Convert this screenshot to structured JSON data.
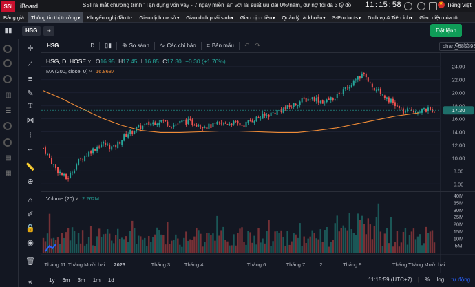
{
  "app": {
    "logo": "SSI",
    "name": "iBoard",
    "clock": "11:15:58",
    "language": "Tiếng Việt",
    "ticker": "SSI ra mắt chương trình \"Tận dụng vốn vay - 7 ngày miễn lãi\" với lãi suất ưu đãi 0%/năm, dư nợ tối đa 3 tỷ đồng/TK, dành cho"
  },
  "menu": [
    {
      "label": "Bảng giá",
      "caret": false,
      "active": false
    },
    {
      "label": "Thông tin thị trường",
      "caret": true,
      "active": true
    },
    {
      "label": "Khuyến nghị đầu tư",
      "caret": false,
      "active": false
    },
    {
      "label": "Giao dịch cơ sở",
      "caret": true,
      "active": false
    },
    {
      "label": "Giao dịch phái sinh",
      "caret": true,
      "active": false
    },
    {
      "label": "Giao dịch tiền",
      "caret": true,
      "active": false
    },
    {
      "label": "Quản lý tài khoản",
      "caret": true,
      "active": false
    },
    {
      "label": "S-Products",
      "caret": true,
      "active": false
    },
    {
      "label": "Dịch vụ & Tiện ích",
      "caret": true,
      "active": false
    },
    {
      "label": "Giao diện của tôi",
      "caret": false,
      "active": false
    }
  ],
  "tabs": {
    "active": "HSG",
    "add": "+"
  },
  "order_button": "Đặt lệnh",
  "toolbar": {
    "symbol": "HSG",
    "interval": "D",
    "compare": "So sánh",
    "indicators": "Các chỉ báo",
    "template": "Bản mẫu",
    "chart_name": "chart_68539677"
  },
  "legend": {
    "title": "HSG, D, HOSE",
    "o_label": "O",
    "open": "16.95",
    "h_label": "H",
    "high": "17.45",
    "l_label": "L",
    "low": "16.85",
    "c_label": "C",
    "close": "17.30",
    "change": "+0.30 (+1.76%)",
    "ma_label": "MA (200, close, 0)",
    "ma_value": "16.8687",
    "vol_label": "Volume (20)",
    "vol_value": "2.262M"
  },
  "bottom": {
    "ranges": [
      "1y",
      "6m",
      "3m",
      "1m",
      "1d"
    ],
    "time": "11:15:59 (UTC+7)",
    "pct": "%",
    "log": "log",
    "auto": "tự động"
  },
  "colors": {
    "up": "#26a69a",
    "down": "#ef5350",
    "ma": "#f08c37",
    "bg": "#131722",
    "accent": "#0f9d58",
    "price_tag": "#1e6f6a"
  },
  "chart_data": {
    "type": "candlestick",
    "price_axis": {
      "ticks": [
        "24.00",
        "22.00",
        "20.00",
        "18.00",
        "16.00",
        "14.00",
        "12.00",
        "10.00",
        "8.00",
        "6.00"
      ],
      "ylim": [
        5.5,
        24.5
      ],
      "last_price": "17.30"
    },
    "volume_axis": {
      "ticks": [
        "40M",
        "35M",
        "30M",
        "25M",
        "20M",
        "15M",
        "10M",
        "5M"
      ],
      "ylim": [
        0,
        40
      ]
    },
    "x_ticks": [
      "Tháng 11",
      "Tháng Mười hai",
      "2023",
      "Tháng 3",
      "Tháng 4",
      "Tháng 6",
      "Tháng 7",
      "2",
      "Tháng 9",
      "Tháng 11",
      "Tháng Mười hai"
    ],
    "bold_x_ticks": [
      "2023"
    ],
    "x_tick_pos": [
      0.03,
      0.11,
      0.195,
      0.3,
      0.385,
      0.545,
      0.645,
      0.71,
      0.79,
      0.92,
      0.98
    ],
    "close_path": [
      [
        0.0,
        11.5
      ],
      [
        0.03,
        8.5
      ],
      [
        0.06,
        6.7
      ],
      [
        0.09,
        9.5
      ],
      [
        0.12,
        11.0
      ],
      [
        0.15,
        12.2
      ],
      [
        0.18,
        11.5
      ],
      [
        0.21,
        13.5
      ],
      [
        0.24,
        14.5
      ],
      [
        0.27,
        15.2
      ],
      [
        0.3,
        15.8
      ],
      [
        0.33,
        15.0
      ],
      [
        0.36,
        15.6
      ],
      [
        0.39,
        15.3
      ],
      [
        0.42,
        14.8
      ],
      [
        0.45,
        15.2
      ],
      [
        0.48,
        15.4
      ],
      [
        0.51,
        15.0
      ],
      [
        0.54,
        16.0
      ],
      [
        0.57,
        16.5
      ],
      [
        0.6,
        17.2
      ],
      [
        0.63,
        17.8
      ],
      [
        0.66,
        18.8
      ],
      [
        0.69,
        19.2
      ],
      [
        0.72,
        18.5
      ],
      [
        0.75,
        19.6
      ],
      [
        0.78,
        20.8
      ],
      [
        0.8,
        21.8
      ],
      [
        0.82,
        23.0
      ],
      [
        0.84,
        21.0
      ],
      [
        0.86,
        20.0
      ],
      [
        0.88,
        19.2
      ],
      [
        0.9,
        18.0
      ],
      [
        0.92,
        17.0
      ],
      [
        0.94,
        17.3
      ],
      [
        0.96,
        17.3
      ]
    ],
    "ma_path": [
      [
        0.0,
        20.3
      ],
      [
        0.05,
        19.0
      ],
      [
        0.1,
        17.5
      ],
      [
        0.15,
        16.1
      ],
      [
        0.2,
        15.0
      ],
      [
        0.25,
        14.2
      ],
      [
        0.3,
        13.9
      ],
      [
        0.35,
        13.9
      ],
      [
        0.4,
        14.0
      ],
      [
        0.45,
        14.1
      ],
      [
        0.5,
        14.1
      ],
      [
        0.55,
        14.0
      ],
      [
        0.6,
        13.9
      ],
      [
        0.65,
        13.9
      ],
      [
        0.7,
        14.2
      ],
      [
        0.75,
        14.6
      ],
      [
        0.8,
        15.2
      ],
      [
        0.85,
        15.8
      ],
      [
        0.9,
        16.4
      ],
      [
        0.96,
        16.9
      ]
    ],
    "x_range": [
      0,
      1
    ]
  }
}
